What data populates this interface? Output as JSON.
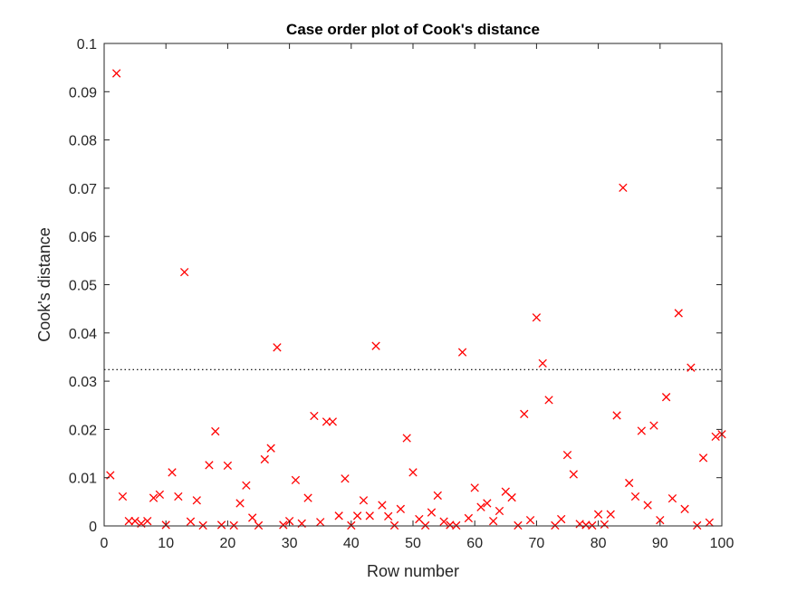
{
  "chart_data": {
    "type": "scatter",
    "title": "Case order plot of Cook's distance",
    "xlabel": "Row number",
    "ylabel": "Cook's distance",
    "xlim": [
      0,
      100
    ],
    "ylim": [
      0,
      0.1
    ],
    "xticks": [
      "0",
      "10",
      "20",
      "30",
      "40",
      "50",
      "60",
      "70",
      "80",
      "90",
      "100"
    ],
    "yticks": [
      "0",
      "0.01",
      "0.02",
      "0.03",
      "0.04",
      "0.05",
      "0.06",
      "0.07",
      "0.08",
      "0.09",
      "0.1"
    ],
    "marker": "x",
    "marker_color": "#ff0000",
    "threshold": 0.0324,
    "threshold_style": "dotted",
    "threshold_color": "#000000",
    "grid": false,
    "x": [
      1,
      2,
      3,
      4,
      5,
      6,
      7,
      8,
      9,
      10,
      11,
      12,
      13,
      14,
      15,
      16,
      17,
      18,
      19,
      20,
      21,
      22,
      23,
      24,
      25,
      26,
      27,
      28,
      29,
      30,
      31,
      32,
      33,
      34,
      35,
      36,
      37,
      38,
      39,
      40,
      41,
      42,
      43,
      44,
      45,
      46,
      47,
      48,
      49,
      50,
      51,
      52,
      53,
      54,
      55,
      56,
      57,
      58,
      59,
      60,
      61,
      62,
      63,
      64,
      65,
      66,
      67,
      68,
      69,
      70,
      71,
      72,
      73,
      74,
      75,
      76,
      77,
      78,
      79,
      80,
      81,
      82,
      83,
      84,
      85,
      86,
      87,
      88,
      89,
      90,
      91,
      92,
      93,
      94,
      95,
      96,
      97,
      98,
      99,
      100
    ],
    "y": [
      0.0105,
      0.0938,
      0.0061,
      0.001,
      0.001,
      0.0005,
      0.001,
      0.0058,
      0.0065,
      0.0002,
      0.0111,
      0.0061,
      0.0526,
      0.0009,
      0.0053,
      0.0001,
      0.0126,
      0.0196,
      0.0002,
      0.0125,
      0.0001,
      0.0047,
      0.0084,
      0.0017,
      0.0001,
      0.0138,
      0.0161,
      0.037,
      0.0002,
      0.001,
      0.0095,
      0.0005,
      0.0058,
      0.0228,
      0.0008,
      0.0216,
      0.0216,
      0.0021,
      0.0098,
      0.0001,
      0.0021,
      0.0053,
      0.0021,
      0.0373,
      0.0043,
      0.002,
      0.0001,
      0.0035,
      0.0182,
      0.0111,
      0.0014,
      0.0001,
      0.0028,
      0.0063,
      0.0009,
      0.0002,
      0.0001,
      0.036,
      0.0016,
      0.0079,
      0.0039,
      0.0047,
      0.001,
      0.0031,
      0.0071,
      0.0059,
      0.0001,
      0.0232,
      0.0012,
      0.0432,
      0.0337,
      0.0261,
      0.0001,
      0.0014,
      0.0147,
      0.0107,
      0.0004,
      0.0002,
      0.0001,
      0.0024,
      0.0003,
      0.0024,
      0.0229,
      0.0701,
      0.0089,
      0.0061,
      0.0197,
      0.0043,
      0.0208,
      0.0012,
      0.0267,
      0.0057,
      0.0441,
      0.0035,
      0.0328,
      0.0001,
      0.0141,
      0.0007,
      0.0185,
      0.019
    ]
  }
}
